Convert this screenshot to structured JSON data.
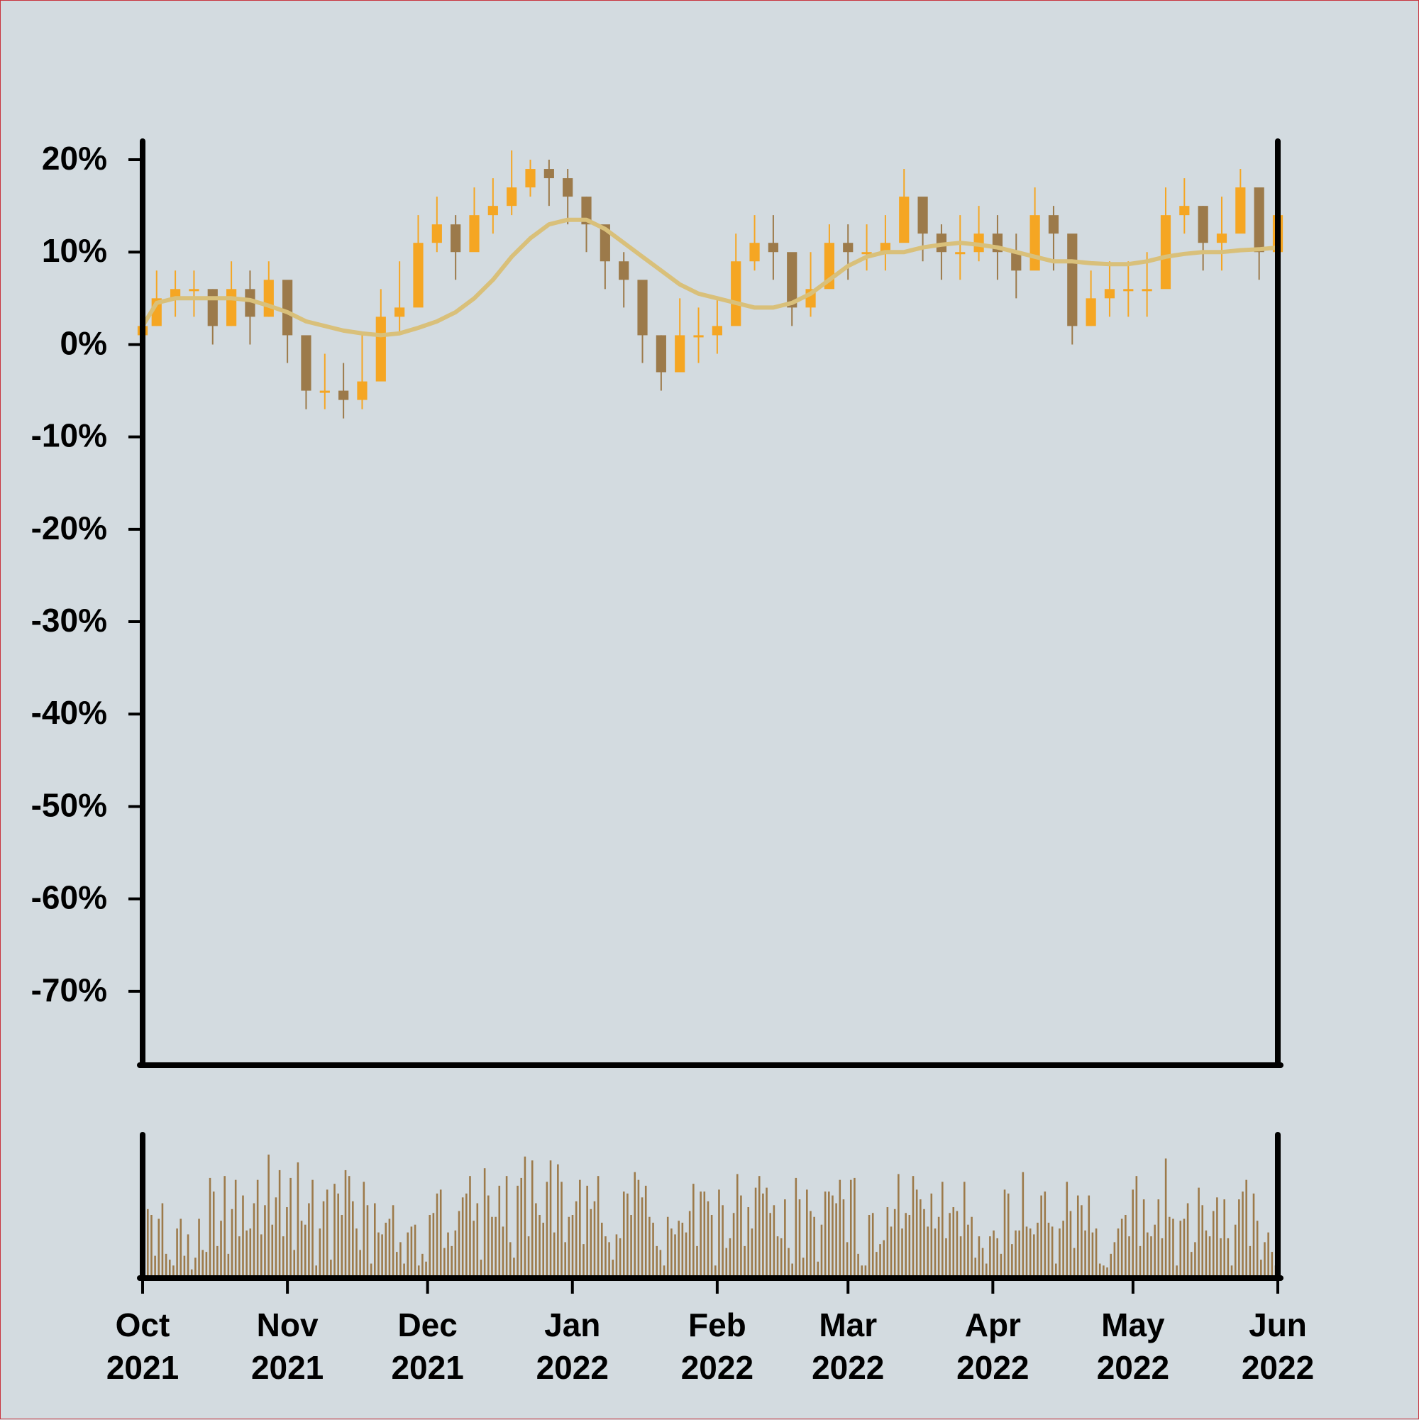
{
  "chart_data": {
    "type": "candlestick",
    "y_unit": "%",
    "ylim": [
      -78,
      22
    ],
    "y_ticks": [
      "20%",
      "10%",
      "0%",
      "-10%",
      "-20%",
      "-30%",
      "-40%",
      "-50%",
      "-60%",
      "-70%"
    ],
    "y_tick_values": [
      20,
      10,
      0,
      -10,
      -20,
      -30,
      -40,
      -50,
      -60,
      -70
    ],
    "xlim": [
      "2021-10-01",
      "2022-06-01"
    ],
    "x_ticks": [
      {
        "date": "2021-10-01",
        "month": "Oct",
        "year": "2021"
      },
      {
        "date": "2021-11-01",
        "month": "Nov",
        "year": "2021"
      },
      {
        "date": "2021-12-01",
        "month": "Dec",
        "year": "2021"
      },
      {
        "date": "2022-01-01",
        "month": "Jan",
        "year": "2022"
      },
      {
        "date": "2022-02-01",
        "month": "Feb",
        "year": "2022"
      },
      {
        "date": "2022-03-01",
        "month": "Mar",
        "year": "2022"
      },
      {
        "date": "2022-04-01",
        "month": "Apr",
        "year": "2022"
      },
      {
        "date": "2022-05-01",
        "month": "May",
        "year": "2022"
      },
      {
        "date": "2022-06-01",
        "month": "Jun",
        "year": "2022"
      }
    ],
    "price_series": {
      "name": "",
      "dates": [
        "2021-10-01",
        "2021-10-04",
        "2021-10-08",
        "2021-10-12",
        "2021-10-16",
        "2021-10-20",
        "2021-10-24",
        "2021-10-28",
        "2021-11-01",
        "2021-11-05",
        "2021-11-09",
        "2021-11-13",
        "2021-11-17",
        "2021-11-21",
        "2021-11-25",
        "2021-11-29",
        "2021-12-03",
        "2021-12-07",
        "2021-12-11",
        "2021-12-15",
        "2021-12-19",
        "2021-12-23",
        "2021-12-27",
        "2021-12-31",
        "2022-01-04",
        "2022-01-08",
        "2022-01-12",
        "2022-01-16",
        "2022-01-20",
        "2022-01-24",
        "2022-01-28",
        "2022-02-01",
        "2022-02-05",
        "2022-02-09",
        "2022-02-13",
        "2022-02-17",
        "2022-02-21",
        "2022-02-25",
        "2022-03-01",
        "2022-03-05",
        "2022-03-09",
        "2022-03-13",
        "2022-03-17",
        "2022-03-21",
        "2022-03-25",
        "2022-03-29",
        "2022-04-02",
        "2022-04-06",
        "2022-04-10",
        "2022-04-14",
        "2022-04-18",
        "2022-04-22",
        "2022-04-26",
        "2022-04-30",
        "2022-05-04",
        "2022-05-08",
        "2022-05-12",
        "2022-05-16",
        "2022-05-20",
        "2022-05-24",
        "2022-05-28",
        "2022-06-01"
      ],
      "close": [
        2,
        5,
        6,
        6,
        2,
        6,
        3,
        7,
        1,
        -5,
        -5,
        -6,
        -4,
        3,
        4,
        11,
        13,
        10,
        14,
        15,
        17,
        19,
        18,
        16,
        13,
        9,
        7,
        1,
        -3,
        1,
        1,
        2,
        9,
        11,
        10,
        4,
        6,
        11,
        10,
        10,
        11,
        16,
        12,
        10,
        10,
        12,
        10,
        8,
        14,
        12,
        2,
        5,
        6,
        6,
        6,
        14,
        15,
        11,
        12,
        17,
        10,
        14
      ],
      "high": [
        6,
        8,
        8,
        8,
        6,
        9,
        8,
        9,
        5,
        -1,
        -1,
        -2,
        1,
        6,
        9,
        14,
        16,
        14,
        17,
        18,
        21,
        20,
        20,
        19,
        16,
        12,
        10,
        5,
        1,
        5,
        4,
        5,
        12,
        14,
        14,
        8,
        10,
        13,
        13,
        13,
        14,
        19,
        15,
        13,
        14,
        15,
        14,
        12,
        17,
        15,
        6,
        8,
        9,
        9,
        10,
        17,
        18,
        15,
        16,
        19,
        14,
        17
      ],
      "low": [
        0,
        2,
        3,
        3,
        0,
        2,
        0,
        3,
        -2,
        -7,
        -7,
        -8,
        -7,
        0,
        1,
        8,
        10,
        7,
        11,
        12,
        14,
        16,
        15,
        13,
        10,
        6,
        4,
        -2,
        -5,
        -2,
        -2,
        -1,
        6,
        8,
        7,
        2,
        3,
        8,
        7,
        8,
        8,
        12,
        9,
        7,
        7,
        9,
        7,
        5,
        10,
        8,
        0,
        2,
        3,
        3,
        3,
        10,
        12,
        8,
        8,
        14,
        7,
        10
      ],
      "ma": [
        2,
        4.5,
        5,
        5,
        5,
        5,
        4.8,
        4.2,
        3.5,
        2.5,
        2,
        1.5,
        1.2,
        1,
        1.2,
        1.8,
        2.5,
        3.5,
        5,
        7,
        9.5,
        11.5,
        13,
        13.5,
        13.5,
        12.5,
        11,
        9.5,
        8,
        6.5,
        5.5,
        5,
        4.5,
        4,
        4,
        4.5,
        5.5,
        7,
        8.5,
        9.5,
        10,
        10,
        10.5,
        10.8,
        11,
        10.8,
        10.5,
        10,
        9.5,
        9,
        9,
        8.8,
        8.7,
        8.7,
        9,
        9.5,
        9.8,
        10,
        10,
        10.2,
        10.3,
        10.5
      ]
    },
    "volume_series": {
      "name": "",
      "values": [
        68,
        62,
        20,
        58,
        74,
        22,
        16,
        10,
        48,
        58,
        20,
        42,
        6,
        18,
        58,
        26,
        24,
        100,
        86,
        30,
        56,
        102,
        22,
        68,
        98,
        40,
        82,
        46,
        48,
        74,
        98,
        42,
        72,
        124,
        52,
        80,
        108,
        40,
        70,
        100,
        26,
        116,
        56,
        52,
        74,
        98,
        10,
        48,
        76,
        88,
        16,
        94,
        84,
        62,
        108,
        102,
        76,
        48,
        26,
        96,
        72,
        12,
        74,
        44,
        42,
        54,
        58,
        72,
        24,
        34,
        12,
        44,
        50,
        52,
        10,
        22,
        14,
        62,
        64,
        84,
        88,
        28,
        44,
        30,
        46,
        66,
        80,
        84,
        102,
        56,
        74,
        16,
        110,
        82,
        60,
        60,
        92,
        50,
        102,
        34,
        18,
        92,
        100,
        122,
        40,
        118,
        74,
        62,
        54,
        96,
        118,
        44,
        114,
        96,
        34,
        60,
        62,
        76,
        98,
        32,
        92,
        68,
        76,
        102,
        54,
        40,
        34,
        16,
        42,
        38,
        86,
        84,
        62,
        106,
        98,
        80,
        92,
        60,
        54,
        30,
        26,
        10,
        60,
        48,
        42,
        56,
        54,
        44,
        66,
        94,
        30,
        86,
        86,
        76,
        62,
        10,
        88,
        72,
        28,
        38,
        64,
        104,
        82,
        30,
        70,
        48,
        90,
        102,
        84,
        90,
        64,
        72,
        40,
        38,
        78,
        28,
        12,
        100,
        78,
        18,
        88,
        66,
        60,
        14,
        52,
        86,
        86,
        82,
        74,
        98,
        78,
        34,
        98,
        100,
        22,
        10,
        10,
        62,
        64,
        24,
        32,
        36,
        70,
        50,
        68,
        104,
        48,
        64,
        62,
        102,
        88,
        78,
        68,
        50,
        84,
        48,
        60,
        96,
        38,
        64,
        70,
        66,
        40,
        96,
        52,
        60,
        18,
        40,
        28,
        12,
        40,
        46,
        38,
        22,
        88,
        84,
        32,
        46,
        46,
        106,
        50,
        48,
        42,
        54,
        82,
        86,
        54,
        50,
        12,
        48,
        56,
        96,
        66,
        28,
        82,
        72,
        46,
        82,
        44,
        48,
        12,
        10,
        8,
        22,
        34,
        48,
        58,
        62,
        40,
        88,
        102,
        30,
        78,
        44,
        40,
        52,
        78,
        38,
        120,
        60,
        58,
        10,
        56,
        58,
        74,
        24,
        34,
        90,
        72,
        46,
        40,
        66,
        80,
        38,
        78,
        38,
        10,
        52,
        78,
        86,
        98,
        30,
        84,
        56,
        16,
        34,
        44,
        24,
        10,
        28
      ]
    }
  },
  "colors": {
    "background": "#d3dbe0",
    "border": "#c8323c",
    "up_candle": "#f5a623",
    "down_candle": "#9c7a4a",
    "moving_average": "#d9c07a",
    "volume_bar": "#9c7a4a",
    "axis": "#000000"
  }
}
